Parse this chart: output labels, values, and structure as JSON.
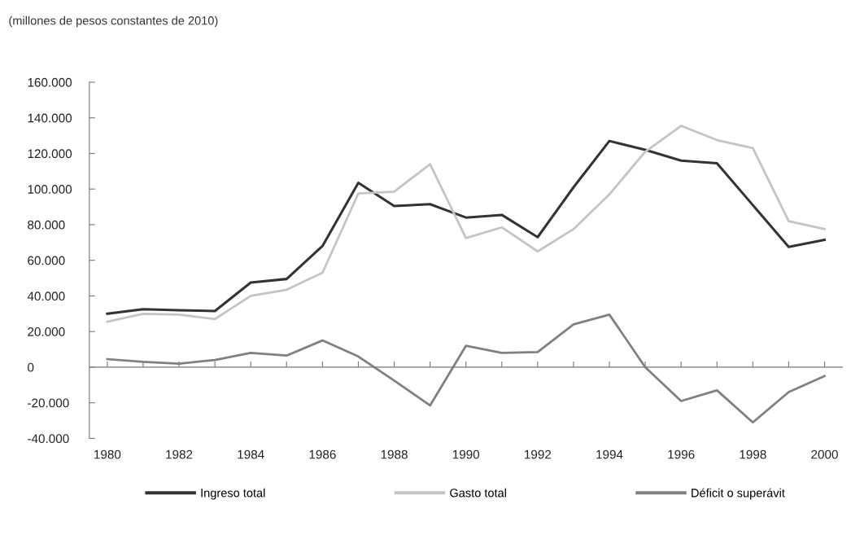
{
  "chart_data": {
    "type": "line",
    "subtitle": "(millones de pesos constantes de 2010)",
    "x": [
      1980,
      1981,
      1982,
      1983,
      1984,
      1985,
      1986,
      1987,
      1988,
      1989,
      1990,
      1991,
      1992,
      1993,
      1994,
      1995,
      1996,
      1997,
      1998,
      1999,
      2000
    ],
    "series": [
      {
        "name": "Ingreso total",
        "color": "#333333",
        "values": [
          30000,
          32500,
          32000,
          31500,
          47500,
          49500,
          68000,
          103500,
          90500,
          91500,
          84000,
          85500,
          73000,
          101000,
          127000,
          122000,
          116000,
          114500,
          91000,
          67500,
          71500
        ]
      },
      {
        "name": "Gasto total",
        "color": "#c4c4c4",
        "values": [
          25500,
          30000,
          29500,
          27000,
          40000,
          43500,
          53000,
          97500,
          98500,
          114000,
          72500,
          78500,
          65000,
          77500,
          97000,
          121000,
          135500,
          127500,
          123000,
          82000,
          77500
        ]
      },
      {
        "name": "Déficit o superávit",
        "color": "#808080",
        "values": [
          4500,
          3000,
          2000,
          4000,
          8000,
          6500,
          15000,
          6000,
          -7500,
          -21500,
          12000,
          8000,
          8500,
          24000,
          29500,
          0,
          -19000,
          -13000,
          -31000,
          -14000,
          -5000
        ]
      }
    ],
    "xlim": [
      1979.5,
      2000.5
    ],
    "xticks": [
      {
        "value": 1980,
        "label": "1980"
      },
      {
        "value": 1981,
        "label": null
      },
      {
        "value": 1982,
        "label": "1982"
      },
      {
        "value": 1983,
        "label": null
      },
      {
        "value": 1984,
        "label": "1984"
      },
      {
        "value": 1985,
        "label": null
      },
      {
        "value": 1986,
        "label": "1986"
      },
      {
        "value": 1987,
        "label": null
      },
      {
        "value": 1988,
        "label": "1988"
      },
      {
        "value": 1989,
        "label": null
      },
      {
        "value": 1990,
        "label": "1990"
      },
      {
        "value": 1991,
        "label": null
      },
      {
        "value": 1992,
        "label": "1992"
      },
      {
        "value": 1993,
        "label": null
      },
      {
        "value": 1994,
        "label": "1994"
      },
      {
        "value": 1995,
        "label": null
      },
      {
        "value": 1996,
        "label": "1996"
      },
      {
        "value": 1997,
        "label": null
      },
      {
        "value": 1998,
        "label": "1998"
      },
      {
        "value": 1999,
        "label": null
      },
      {
        "value": 2000,
        "label": "2000"
      }
    ],
    "ylim": [
      -40000,
      160000
    ],
    "yticks": [
      {
        "value": -40000,
        "label": "-40.000"
      },
      {
        "value": -20000,
        "label": "-20.000"
      },
      {
        "value": 0,
        "label": "0"
      },
      {
        "value": 20000,
        "label": "20.000"
      },
      {
        "value": 40000,
        "label": "40.000"
      },
      {
        "value": 60000,
        "label": "60.000"
      },
      {
        "value": 80000,
        "label": "80.000"
      },
      {
        "value": 100000,
        "label": "100.000"
      },
      {
        "value": 120000,
        "label": "120.000"
      },
      {
        "value": 140000,
        "label": "140.000"
      },
      {
        "value": 160000,
        "label": "160.000"
      }
    ],
    "legend": "bottom",
    "marker": "none",
    "line_style": "solid"
  }
}
